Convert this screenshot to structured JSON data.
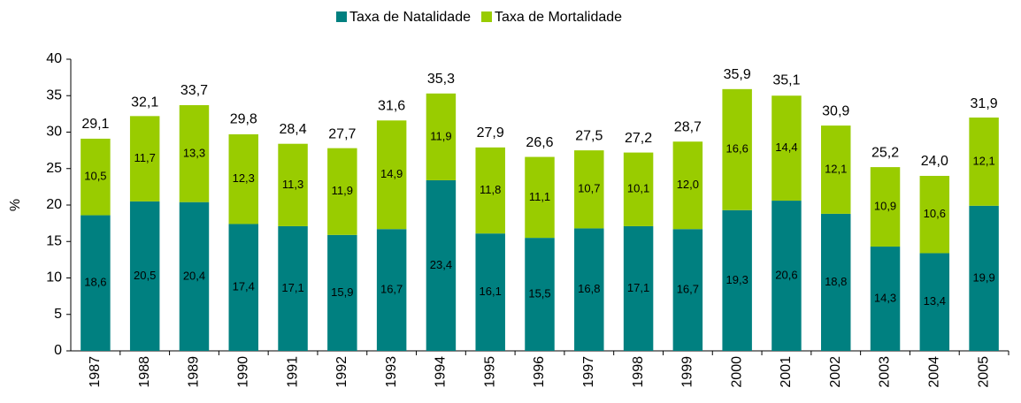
{
  "chart_data": {
    "type": "stacked_bar",
    "y_label": "%",
    "categories": [
      "1987",
      "1988",
      "1989",
      "1990",
      "1991",
      "1992",
      "1993",
      "1994",
      "1995",
      "1996",
      "1997",
      "1998",
      "1999",
      "2000",
      "2001",
      "2002",
      "2003",
      "2004",
      "2005"
    ],
    "series": [
      {
        "name": "Taxa de Natalidade",
        "color": "#008080",
        "values": [
          18.6,
          20.5,
          20.4,
          17.4,
          17.1,
          15.9,
          16.7,
          23.4,
          16.1,
          15.5,
          16.8,
          17.1,
          16.7,
          19.3,
          20.6,
          18.8,
          14.3,
          13.4,
          19.9
        ],
        "value_labels": [
          "18,6",
          "20,5",
          "20,4",
          "17,4",
          "17,1",
          "15,9",
          "16,7",
          "23,4",
          "16,1",
          "15,5",
          "16,8",
          "17,1",
          "16,7",
          "19,3",
          "20,6",
          "18,8",
          "14,3",
          "13,4",
          "19,9"
        ]
      },
      {
        "name": "Taxa de Mortalidade",
        "color": "#99cc00",
        "values": [
          10.5,
          11.7,
          13.3,
          12.3,
          11.3,
          11.9,
          14.9,
          11.9,
          11.8,
          11.1,
          10.7,
          10.1,
          12.0,
          16.6,
          14.4,
          12.1,
          10.9,
          10.6,
          12.1
        ],
        "value_labels": [
          "10,5",
          "11,7",
          "13,3",
          "12,3",
          "11,3",
          "11,9",
          "14,9",
          "11,9",
          "11,8",
          "11,1",
          "10,7",
          "10,1",
          "12,0",
          "16,6",
          "14,4",
          "12,1",
          "10,9",
          "10,6",
          "12,1"
        ]
      }
    ],
    "totals": [
      29.1,
      32.1,
      33.7,
      29.8,
      28.4,
      27.7,
      31.6,
      35.3,
      27.9,
      26.6,
      27.5,
      27.2,
      28.7,
      35.9,
      35.1,
      30.9,
      25.2,
      24.0,
      31.9
    ],
    "total_labels": [
      "29,1",
      "32,1",
      "33,7",
      "29,8",
      "28,4",
      "27,7",
      "31,6",
      "35,3",
      "27,9",
      "26,6",
      "27,5",
      "27,2",
      "28,7",
      "35,9",
      "35,1",
      "30,9",
      "25,2",
      "24,0",
      "31,9"
    ],
    "ylim": [
      0,
      40
    ],
    "yticks": [
      0,
      5,
      10,
      15,
      20,
      25,
      30,
      35,
      40
    ],
    "legend": "top"
  }
}
